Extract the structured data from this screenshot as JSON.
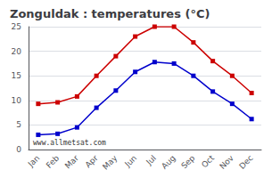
{
  "chart_data": {
    "type": "line",
    "title": "Zonguldak : temperatures (°C)",
    "categories": [
      "Jan",
      "Feb",
      "Mar",
      "Apr",
      "May",
      "Jun",
      "Jul",
      "Aug",
      "Sep",
      "Oct",
      "Nov",
      "Dec"
    ],
    "series": [
      {
        "color": "#cc0000",
        "marker": "square",
        "line_style": "solid",
        "values": [
          9.3,
          9.6,
          10.8,
          15.0,
          19.0,
          23.0,
          25.0,
          25.0,
          21.8,
          18.0,
          15.0,
          11.5
        ]
      },
      {
        "color": "#0000cc",
        "marker": "square",
        "line_style": "solid",
        "values": [
          3.0,
          3.2,
          4.5,
          8.5,
          12.0,
          15.8,
          17.8,
          17.5,
          15.0,
          11.8,
          9.3,
          6.2
        ]
      }
    ],
    "ylim": [
      0,
      25
    ],
    "yticks": [
      0,
      5,
      10,
      15,
      20,
      25
    ],
    "grid": true,
    "annotation": "www.allmetsat.com"
  }
}
